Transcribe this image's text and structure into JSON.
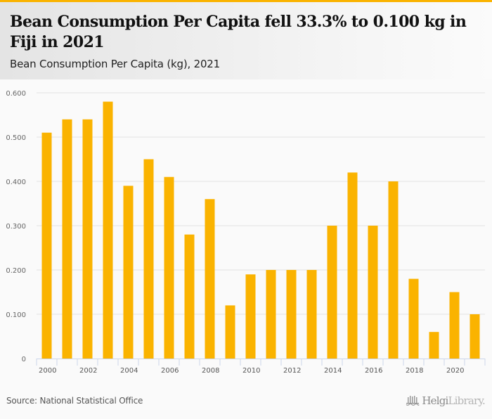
{
  "header": {
    "title": "Bean Consumption Per Capita fell 33.3% to 0.100 kg in Fiji in 2021",
    "subtitle": "Bean Consumption Per Capita (kg), 2021"
  },
  "footer": {
    "source": "Source: National Statistical Office",
    "logo_part1": "Helgi",
    "logo_part2": "Library."
  },
  "colors": {
    "accent": "#fab300",
    "bar": "#fab300",
    "grid": "#e3e3e3",
    "axis": "#ccd6eb"
  },
  "chart_data": {
    "type": "bar",
    "title": "Bean Consumption Per Capita (kg), 2021",
    "xlabel": "",
    "ylabel": "",
    "ylim": [
      0,
      0.6
    ],
    "yticks": [
      0,
      0.1,
      0.2,
      0.3,
      0.4,
      0.5,
      0.6
    ],
    "ytick_labels": [
      "0",
      "0.100",
      "0.200",
      "0.300",
      "0.400",
      "0.500",
      "0.600"
    ],
    "grid": true,
    "legend": "none",
    "categories": [
      "2000",
      "2001",
      "2002",
      "2003",
      "2004",
      "2005",
      "2006",
      "2007",
      "2008",
      "2009",
      "2010",
      "2011",
      "2012",
      "2013",
      "2014",
      "2015",
      "2016",
      "2017",
      "2018",
      "2019",
      "2020",
      "2021"
    ],
    "xtick_labels": [
      "2000",
      "",
      "2002",
      "",
      "2004",
      "",
      "2006",
      "",
      "2008",
      "",
      "2010",
      "",
      "2012",
      "",
      "2014",
      "",
      "2016",
      "",
      "2018",
      "",
      "2020",
      ""
    ],
    "series": [
      {
        "name": "Bean Consumption Per Capita (kg)",
        "values": [
          0.51,
          0.54,
          0.54,
          0.58,
          0.39,
          0.45,
          0.41,
          0.28,
          0.36,
          0.12,
          0.19,
          0.2,
          0.2,
          0.2,
          0.3,
          0.42,
          0.3,
          0.4,
          0.18,
          0.06,
          0.15,
          0.1
        ]
      }
    ]
  }
}
